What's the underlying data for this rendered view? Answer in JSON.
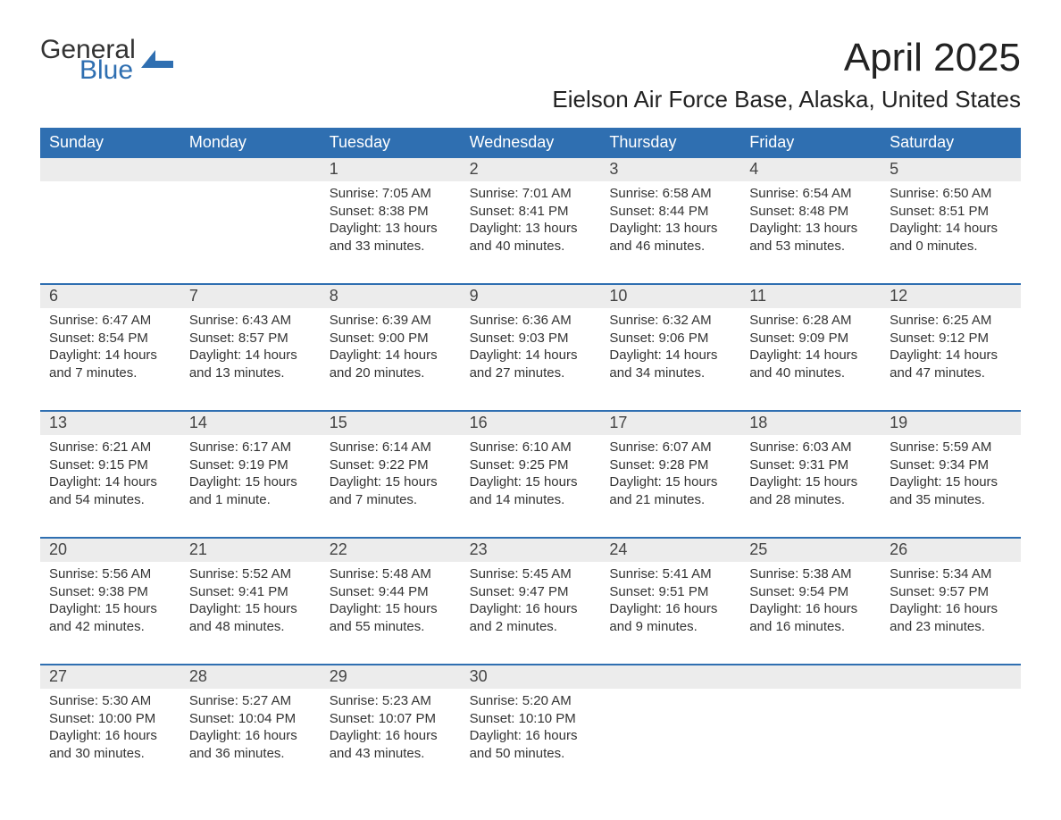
{
  "brand": {
    "general": "General",
    "blue": "Blue",
    "accent": "#2f6fb1"
  },
  "title": "April 2025",
  "location": "Eielson Air Force Base, Alaska, United States",
  "colors": {
    "header_bg": "#2f6fb1",
    "header_text": "#ffffff",
    "daynum_bg": "#ececec",
    "row_divider": "#2f6fb1",
    "body_text": "#333333",
    "page_bg": "#ffffff"
  },
  "calendar": {
    "day_labels": [
      "Sunday",
      "Monday",
      "Tuesday",
      "Wednesday",
      "Thursday",
      "Friday",
      "Saturday"
    ],
    "weeks": [
      [
        null,
        null,
        {
          "n": "1",
          "sunrise": "7:05 AM",
          "sunset": "8:38 PM",
          "dl1": "Daylight: 13 hours",
          "dl2": "and 33 minutes."
        },
        {
          "n": "2",
          "sunrise": "7:01 AM",
          "sunset": "8:41 PM",
          "dl1": "Daylight: 13 hours",
          "dl2": "and 40 minutes."
        },
        {
          "n": "3",
          "sunrise": "6:58 AM",
          "sunset": "8:44 PM",
          "dl1": "Daylight: 13 hours",
          "dl2": "and 46 minutes."
        },
        {
          "n": "4",
          "sunrise": "6:54 AM",
          "sunset": "8:48 PM",
          "dl1": "Daylight: 13 hours",
          "dl2": "and 53 minutes."
        },
        {
          "n": "5",
          "sunrise": "6:50 AM",
          "sunset": "8:51 PM",
          "dl1": "Daylight: 14 hours",
          "dl2": "and 0 minutes."
        }
      ],
      [
        {
          "n": "6",
          "sunrise": "6:47 AM",
          "sunset": "8:54 PM",
          "dl1": "Daylight: 14 hours",
          "dl2": "and 7 minutes."
        },
        {
          "n": "7",
          "sunrise": "6:43 AM",
          "sunset": "8:57 PM",
          "dl1": "Daylight: 14 hours",
          "dl2": "and 13 minutes."
        },
        {
          "n": "8",
          "sunrise": "6:39 AM",
          "sunset": "9:00 PM",
          "dl1": "Daylight: 14 hours",
          "dl2": "and 20 minutes."
        },
        {
          "n": "9",
          "sunrise": "6:36 AM",
          "sunset": "9:03 PM",
          "dl1": "Daylight: 14 hours",
          "dl2": "and 27 minutes."
        },
        {
          "n": "10",
          "sunrise": "6:32 AM",
          "sunset": "9:06 PM",
          "dl1": "Daylight: 14 hours",
          "dl2": "and 34 minutes."
        },
        {
          "n": "11",
          "sunrise": "6:28 AM",
          "sunset": "9:09 PM",
          "dl1": "Daylight: 14 hours",
          "dl2": "and 40 minutes."
        },
        {
          "n": "12",
          "sunrise": "6:25 AM",
          "sunset": "9:12 PM",
          "dl1": "Daylight: 14 hours",
          "dl2": "and 47 minutes."
        }
      ],
      [
        {
          "n": "13",
          "sunrise": "6:21 AM",
          "sunset": "9:15 PM",
          "dl1": "Daylight: 14 hours",
          "dl2": "and 54 minutes."
        },
        {
          "n": "14",
          "sunrise": "6:17 AM",
          "sunset": "9:19 PM",
          "dl1": "Daylight: 15 hours",
          "dl2": "and 1 minute."
        },
        {
          "n": "15",
          "sunrise": "6:14 AM",
          "sunset": "9:22 PM",
          "dl1": "Daylight: 15 hours",
          "dl2": "and 7 minutes."
        },
        {
          "n": "16",
          "sunrise": "6:10 AM",
          "sunset": "9:25 PM",
          "dl1": "Daylight: 15 hours",
          "dl2": "and 14 minutes."
        },
        {
          "n": "17",
          "sunrise": "6:07 AM",
          "sunset": "9:28 PM",
          "dl1": "Daylight: 15 hours",
          "dl2": "and 21 minutes."
        },
        {
          "n": "18",
          "sunrise": "6:03 AM",
          "sunset": "9:31 PM",
          "dl1": "Daylight: 15 hours",
          "dl2": "and 28 minutes."
        },
        {
          "n": "19",
          "sunrise": "5:59 AM",
          "sunset": "9:34 PM",
          "dl1": "Daylight: 15 hours",
          "dl2": "and 35 minutes."
        }
      ],
      [
        {
          "n": "20",
          "sunrise": "5:56 AM",
          "sunset": "9:38 PM",
          "dl1": "Daylight: 15 hours",
          "dl2": "and 42 minutes."
        },
        {
          "n": "21",
          "sunrise": "5:52 AM",
          "sunset": "9:41 PM",
          "dl1": "Daylight: 15 hours",
          "dl2": "and 48 minutes."
        },
        {
          "n": "22",
          "sunrise": "5:48 AM",
          "sunset": "9:44 PM",
          "dl1": "Daylight: 15 hours",
          "dl2": "and 55 minutes."
        },
        {
          "n": "23",
          "sunrise": "5:45 AM",
          "sunset": "9:47 PM",
          "dl1": "Daylight: 16 hours",
          "dl2": "and 2 minutes."
        },
        {
          "n": "24",
          "sunrise": "5:41 AM",
          "sunset": "9:51 PM",
          "dl1": "Daylight: 16 hours",
          "dl2": "and 9 minutes."
        },
        {
          "n": "25",
          "sunrise": "5:38 AM",
          "sunset": "9:54 PM",
          "dl1": "Daylight: 16 hours",
          "dl2": "and 16 minutes."
        },
        {
          "n": "26",
          "sunrise": "5:34 AM",
          "sunset": "9:57 PM",
          "dl1": "Daylight: 16 hours",
          "dl2": "and 23 minutes."
        }
      ],
      [
        {
          "n": "27",
          "sunrise": "5:30 AM",
          "sunset": "10:00 PM",
          "dl1": "Daylight: 16 hours",
          "dl2": "and 30 minutes."
        },
        {
          "n": "28",
          "sunrise": "5:27 AM",
          "sunset": "10:04 PM",
          "dl1": "Daylight: 16 hours",
          "dl2": "and 36 minutes."
        },
        {
          "n": "29",
          "sunrise": "5:23 AM",
          "sunset": "10:07 PM",
          "dl1": "Daylight: 16 hours",
          "dl2": "and 43 minutes."
        },
        {
          "n": "30",
          "sunrise": "5:20 AM",
          "sunset": "10:10 PM",
          "dl1": "Daylight: 16 hours",
          "dl2": "and 50 minutes."
        },
        null,
        null,
        null
      ]
    ]
  },
  "labels": {
    "sunrise_prefix": "Sunrise: ",
    "sunset_prefix": "Sunset: "
  }
}
